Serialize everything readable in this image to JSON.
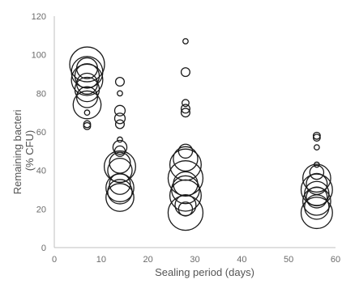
{
  "chart_data": {
    "type": "scatter",
    "subtype": "bubble",
    "title": "",
    "xlabel": "Sealing period (days)",
    "ylabel_lines": [
      "Remaining bacteri",
      "(% CFU)"
    ],
    "xlim": [
      0,
      60
    ],
    "ylim": [
      0,
      120
    ],
    "x_ticks": [
      "0",
      "10",
      "20",
      "30",
      "40",
      "50",
      "60"
    ],
    "y_ticks": [
      "0",
      "20",
      "40",
      "60",
      "80",
      "100",
      "120"
    ],
    "grid": false,
    "legend": "none",
    "marker_style": "hollow circle",
    "marker_color": "#1a1a1a",
    "series": [
      {
        "points": [
          {
            "x": 7,
            "y": 63,
            "size": 2
          },
          {
            "x": 7,
            "y": 64,
            "size": 2
          },
          {
            "x": 7,
            "y": 70,
            "size": 1.5
          },
          {
            "x": 7,
            "y": 74,
            "size": 8
          },
          {
            "x": 7,
            "y": 78,
            "size": 6
          },
          {
            "x": 7,
            "y": 82,
            "size": 7
          },
          {
            "x": 7,
            "y": 85,
            "size": 6
          },
          {
            "x": 7,
            "y": 87,
            "size": 9
          },
          {
            "x": 7,
            "y": 89,
            "size": 7
          },
          {
            "x": 7,
            "y": 91,
            "size": 9
          },
          {
            "x": 7,
            "y": 93,
            "size": 6
          },
          {
            "x": 7,
            "y": 95,
            "size": 10
          },
          {
            "x": 14,
            "y": 86,
            "size": 2.5
          },
          {
            "x": 14,
            "y": 80,
            "size": 1.5
          },
          {
            "x": 14,
            "y": 71,
            "size": 3
          },
          {
            "x": 14,
            "y": 67,
            "size": 3
          },
          {
            "x": 14,
            "y": 64,
            "size": 2.5
          },
          {
            "x": 14,
            "y": 56,
            "size": 1.5
          },
          {
            "x": 14,
            "y": 52,
            "size": 4
          },
          {
            "x": 14,
            "y": 50,
            "size": 3
          },
          {
            "x": 14,
            "y": 44,
            "size": 6
          },
          {
            "x": 14,
            "y": 42,
            "size": 9
          },
          {
            "x": 14,
            "y": 40,
            "size": 7
          },
          {
            "x": 14,
            "y": 33,
            "size": 6
          },
          {
            "x": 14,
            "y": 31,
            "size": 8
          },
          {
            "x": 14,
            "y": 29,
            "size": 7
          },
          {
            "x": 14,
            "y": 26,
            "size": 8
          },
          {
            "x": 28,
            "y": 107,
            "size": 1.5
          },
          {
            "x": 28,
            "y": 91,
            "size": 2.5
          },
          {
            "x": 28,
            "y": 75,
            "size": 2
          },
          {
            "x": 28,
            "y": 72,
            "size": 2.5
          },
          {
            "x": 28,
            "y": 70,
            "size": 2.5
          },
          {
            "x": 28,
            "y": 50,
            "size": 4
          },
          {
            "x": 28,
            "y": 46,
            "size": 7
          },
          {
            "x": 28,
            "y": 43,
            "size": 9
          },
          {
            "x": 28,
            "y": 36,
            "size": 10
          },
          {
            "x": 28,
            "y": 33,
            "size": 7
          },
          {
            "x": 28,
            "y": 30,
            "size": 8
          },
          {
            "x": 28,
            "y": 27,
            "size": 9
          },
          {
            "x": 28,
            "y": 22,
            "size": 6
          },
          {
            "x": 28,
            "y": 20,
            "size": 4
          },
          {
            "x": 28,
            "y": 18,
            "size": 10
          },
          {
            "x": 56,
            "y": 58,
            "size": 2
          },
          {
            "x": 56,
            "y": 57,
            "size": 2
          },
          {
            "x": 56,
            "y": 52,
            "size": 1.5
          },
          {
            "x": 56,
            "y": 43,
            "size": 1.5
          },
          {
            "x": 56,
            "y": 39,
            "size": 4
          },
          {
            "x": 56,
            "y": 36,
            "size": 8
          },
          {
            "x": 56,
            "y": 33,
            "size": 6
          },
          {
            "x": 56,
            "y": 30,
            "size": 9
          },
          {
            "x": 56,
            "y": 28,
            "size": 7
          },
          {
            "x": 56,
            "y": 26,
            "size": 6
          },
          {
            "x": 56,
            "y": 24,
            "size": 8
          },
          {
            "x": 56,
            "y": 21,
            "size": 7
          },
          {
            "x": 56,
            "y": 18,
            "size": 9
          }
        ]
      }
    ]
  }
}
